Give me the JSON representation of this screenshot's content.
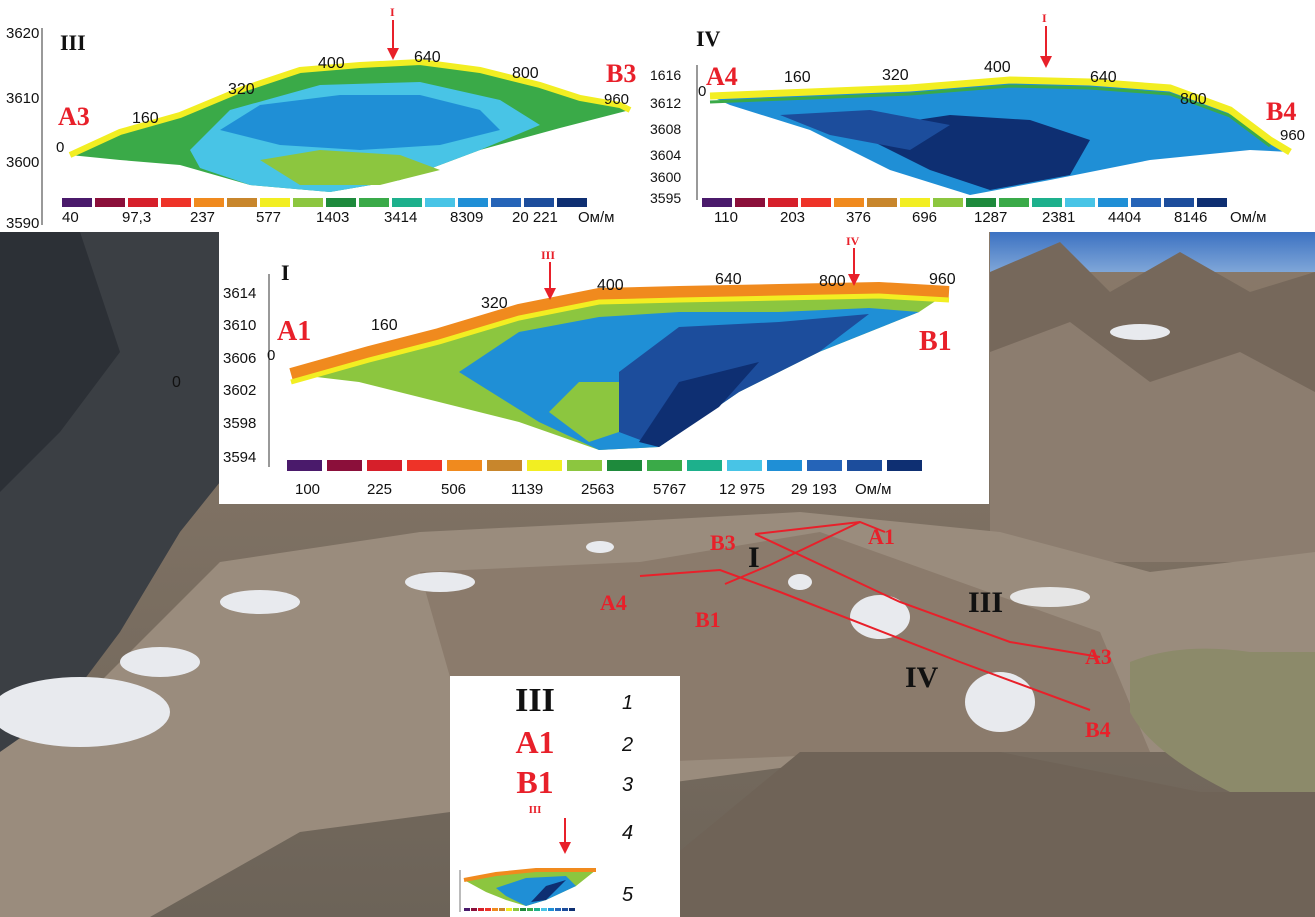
{
  "top_left_panel": {
    "profile": "III",
    "start": "A3",
    "end": "B3",
    "elev_ticks": [
      "3620",
      "3610",
      "3600",
      "3590"
    ],
    "distance_ticks": [
      "0",
      "160",
      "320",
      "400",
      "640",
      "800",
      "960"
    ],
    "cross_marker": "I",
    "scale_labels": [
      "40",
      "97,3",
      "237",
      "577",
      "1403",
      "3414",
      "8309",
      "20 221",
      "Ом/м"
    ]
  },
  "top_right_panel": {
    "profile": "IV",
    "start": "A4",
    "end": "B4",
    "elev_ticks": [
      "1616",
      "3612",
      "3608",
      "3604",
      "3600",
      "3595"
    ],
    "distance_ticks": [
      "0",
      "160",
      "320",
      "400",
      "640",
      "800",
      "960"
    ],
    "cross_marker": "I",
    "scale_labels": [
      "110",
      "203",
      "376",
      "696",
      "1287",
      "2381",
      "4404",
      "8146",
      "Ом/м"
    ]
  },
  "center_panel": {
    "profile": "I",
    "start": "A1",
    "end": "B1",
    "elev_ticks": [
      "3614",
      "3610",
      "3606",
      "3602",
      "3598",
      "3594"
    ],
    "distance_ticks": [
      "0",
      "160",
      "320",
      "400",
      "640",
      "800",
      "960"
    ],
    "cross_markers": [
      "III",
      "IV"
    ],
    "scale_labels": [
      "100",
      "225",
      "506",
      "1139",
      "2563",
      "5767",
      "12 975",
      "29 193",
      "Ом/м"
    ]
  },
  "photo_labels": {
    "profiles": [
      "I",
      "III",
      "IV"
    ],
    "points": [
      "A1",
      "B1",
      "A3",
      "B3",
      "A4",
      "B4"
    ],
    "terrain_zero": "0"
  },
  "legend": {
    "items": [
      {
        "symbol": "III",
        "number": "1"
      },
      {
        "symbol": "A1",
        "number": "2"
      },
      {
        "symbol": "B1",
        "number": "3"
      },
      {
        "symbol": "III",
        "number": "4"
      },
      {
        "symbol": "",
        "number": "5"
      }
    ]
  },
  "colors": {
    "accent_red": "#e8202a",
    "resistivity_scale": [
      "#4a1a6b",
      "#8b0f3a",
      "#d61f2a",
      "#ee3328",
      "#f08a1e",
      "#c8862c",
      "#f2ee22",
      "#8cc63f",
      "#1e8a3c",
      "#3aaa48",
      "#1db08c",
      "#48c4e6",
      "#1f8fd6",
      "#2564b8",
      "#1c4d9c",
      "#0e2f72"
    ]
  }
}
